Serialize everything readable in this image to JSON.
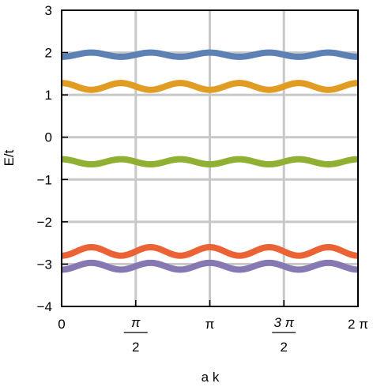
{
  "chart_data": {
    "type": "line",
    "xlabel": "a k",
    "ylabel": "E/t",
    "xlim": [
      0,
      6.2832
    ],
    "ylim": [
      -4,
      3
    ],
    "grid": true,
    "xticks": [
      {
        "value": 0,
        "label": "0",
        "fraction": false
      },
      {
        "value": 1.5708,
        "label": "π",
        "denominator": "2",
        "fraction": true
      },
      {
        "value": 3.1416,
        "label": "π",
        "fraction": false
      },
      {
        "value": 4.7124,
        "label": "3 π",
        "denominator": "2",
        "fraction": true
      },
      {
        "value": 6.2832,
        "label": "2 π",
        "fraction": false
      }
    ],
    "yticks": [
      {
        "value": 3,
        "label": "3"
      },
      {
        "value": 2,
        "label": "2"
      },
      {
        "value": 1,
        "label": "1"
      },
      {
        "value": 0,
        "label": "0"
      },
      {
        "value": -1,
        "label": "−1"
      },
      {
        "value": -2,
        "label": "−2"
      },
      {
        "value": -3,
        "label": "−3"
      },
      {
        "value": -4,
        "label": "−4"
      }
    ],
    "series": [
      {
        "color": "#5e81b5",
        "mean": 1.95,
        "amplitude": 0.05,
        "frequency": 5,
        "phase_deg": -90
      },
      {
        "color": "#e19c24",
        "mean": 1.2,
        "amplitude": 0.08,
        "frequency": 5,
        "phase_deg": 90
      },
      {
        "color": "#8fb032",
        "mean": -0.58,
        "amplitude": 0.06,
        "frequency": 5,
        "phase_deg": 90
      },
      {
        "color": "#eb6235",
        "mean": -2.7,
        "amplitude": 0.1,
        "frequency": 5,
        "phase_deg": -90
      },
      {
        "color": "#8778b3",
        "mean": -3.05,
        "amplitude": 0.08,
        "frequency": 5,
        "phase_deg": -90
      }
    ]
  }
}
